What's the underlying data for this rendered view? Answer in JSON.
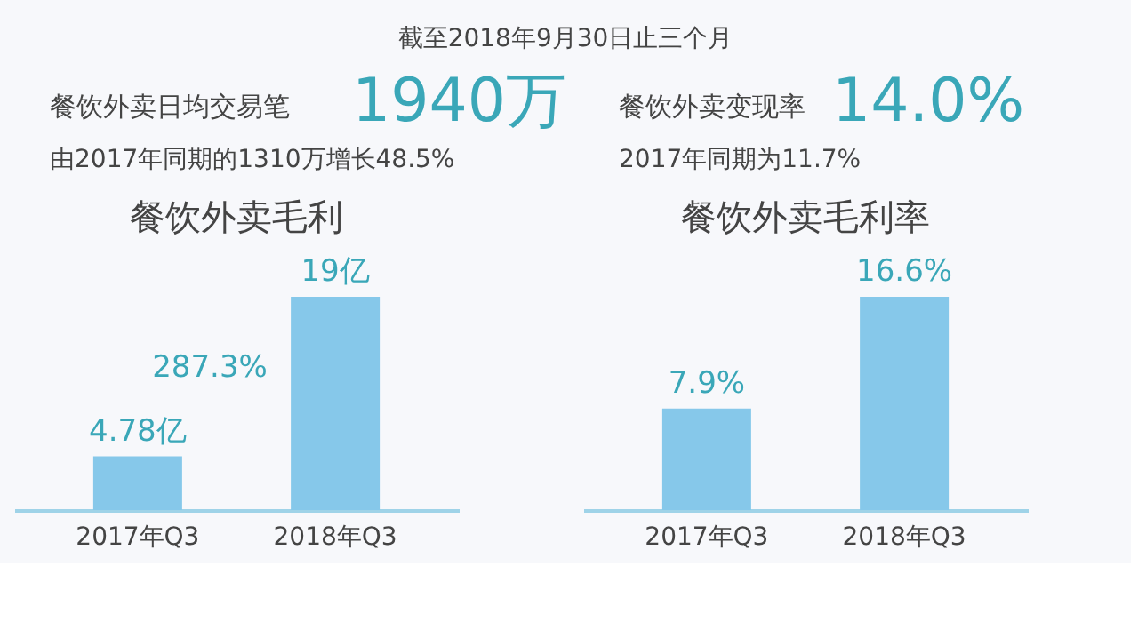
{
  "chart_data": [
    {
      "type": "other",
      "annotations": [
        "截至2018年9月30日止三个月",
        "餐饮外卖日均交易笔",
        "1940万",
        "由2017年同期的1310万增长48.5%",
        "餐饮外卖变现率",
        "14.0%",
        "2017年同期为11.7%"
      ]
    },
    {
      "type": "bar",
      "title": "餐饮外卖毛利",
      "categories": [
        "2017年Q3",
        "2018年Q3"
      ],
      "values": [
        4.78,
        19
      ],
      "value_labels": [
        "4.78亿",
        "19亿"
      ],
      "color": "#86c8ea",
      "annotations": [
        "287.3%"
      ]
    },
    {
      "type": "bar",
      "title": "餐饮外卖毛利率",
      "categories": [
        "2017年Q3",
        "2018年Q3"
      ],
      "values": [
        7.9,
        16.6
      ],
      "value_labels": [
        "7.9%",
        "16.6%"
      ],
      "color": "#86c8ea"
    }
  ]
}
